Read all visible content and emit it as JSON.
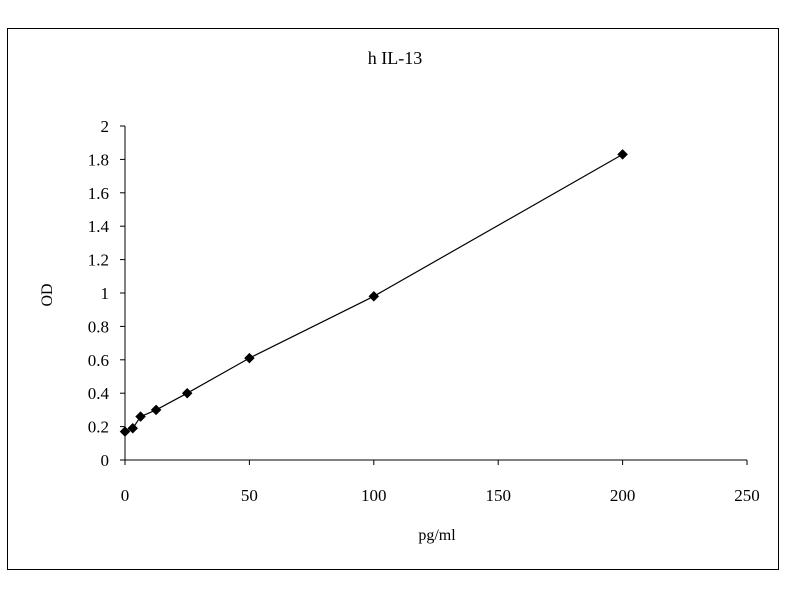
{
  "chart_data": {
    "type": "scatter",
    "title": "h IL-13",
    "xlabel": "pg/ml",
    "ylabel": "OD",
    "xlim": [
      0,
      250
    ],
    "ylim": [
      0,
      2
    ],
    "xticks": [
      0,
      50,
      100,
      150,
      200,
      250
    ],
    "yticks": [
      0,
      0.2,
      0.4,
      0.6,
      0.8,
      1,
      1.2,
      1.4,
      1.6,
      1.8,
      2
    ],
    "x": [
      0,
      3.125,
      6.25,
      12.5,
      25,
      50,
      100,
      200
    ],
    "y": [
      0.17,
      0.19,
      0.26,
      0.3,
      0.4,
      0.61,
      0.98,
      1.83
    ],
    "grid": false,
    "legend": "none",
    "marker": "diamond",
    "line": "connected",
    "colors": {
      "series": "#000000",
      "axis": "#000000",
      "background": "#ffffff"
    }
  }
}
